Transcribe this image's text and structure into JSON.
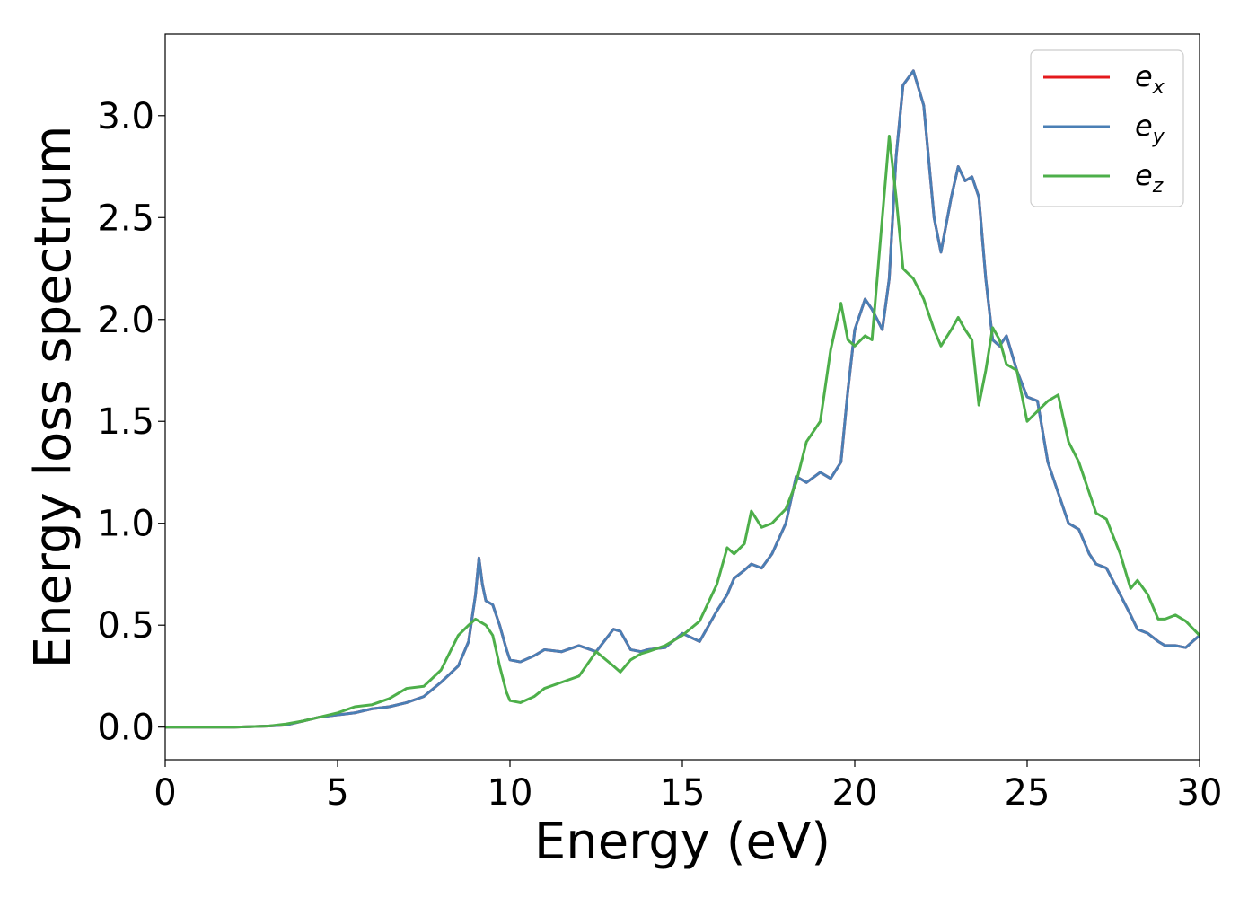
{
  "chart_data": {
    "type": "line",
    "title": "",
    "xlabel": "Energy (eV)",
    "ylabel": "Energy loss spectrum",
    "xlim": [
      0,
      30
    ],
    "ylim": [
      -0.16,
      3.4
    ],
    "xticks": [
      "0",
      "5",
      "10",
      "15",
      "20",
      "25",
      "30"
    ],
    "yticks": [
      "0.0",
      "0.5",
      "1.0",
      "1.5",
      "2.0",
      "2.5",
      "3.0"
    ],
    "grid": false,
    "legend_position": "top-right",
    "x": [
      0,
      1,
      2,
      3,
      3.5,
      4,
      4.5,
      5,
      5.5,
      6,
      6.5,
      7,
      7.5,
      8,
      8.5,
      8.8,
      9,
      9.1,
      9.2,
      9.3,
      9.5,
      9.7,
      9.9,
      10,
      10.3,
      10.7,
      11,
      11.5,
      12,
      12.5,
      13,
      13.2,
      13.5,
      13.8,
      14,
      14.5,
      15,
      15.5,
      16,
      16.3,
      16.5,
      16.8,
      17,
      17.3,
      17.6,
      18,
      18.3,
      18.6,
      19,
      19.3,
      19.6,
      19.8,
      20,
      20.3,
      20.5,
      20.8,
      21,
      21.2,
      21.4,
      21.7,
      22,
      22.3,
      22.5,
      22.8,
      23,
      23.2,
      23.4,
      23.6,
      23.8,
      24,
      24.2,
      24.4,
      24.7,
      25,
      25.3,
      25.6,
      25.9,
      26.2,
      26.5,
      26.8,
      27,
      27.3,
      27.7,
      28,
      28.2,
      28.5,
      28.8,
      29,
      29.3,
      29.6,
      30
    ],
    "series": [
      {
        "name": "e_x",
        "legend_base": "e",
        "legend_sub": "x",
        "color": "#e41a1c",
        "values": [
          0,
          0,
          0,
          0.005,
          0.01,
          0.03,
          0.05,
          0.06,
          0.07,
          0.09,
          0.1,
          0.12,
          0.15,
          0.22,
          0.3,
          0.42,
          0.65,
          0.83,
          0.7,
          0.62,
          0.6,
          0.5,
          0.38,
          0.33,
          0.32,
          0.35,
          0.38,
          0.37,
          0.4,
          0.37,
          0.48,
          0.47,
          0.38,
          0.37,
          0.38,
          0.39,
          0.46,
          0.42,
          0.57,
          0.65,
          0.73,
          0.77,
          0.8,
          0.78,
          0.85,
          1.0,
          1.23,
          1.2,
          1.25,
          1.22,
          1.3,
          1.65,
          1.95,
          2.1,
          2.05,
          1.95,
          2.2,
          2.8,
          3.15,
          3.22,
          3.05,
          2.5,
          2.33,
          2.6,
          2.75,
          2.68,
          2.7,
          2.6,
          2.2,
          1.9,
          1.87,
          1.92,
          1.75,
          1.62,
          1.6,
          1.3,
          1.15,
          1.0,
          0.97,
          0.85,
          0.8,
          0.78,
          0.65,
          0.55,
          0.48,
          0.46,
          0.42,
          0.4,
          0.4,
          0.39,
          0.45
        ]
      },
      {
        "name": "e_y",
        "legend_base": "e",
        "legend_sub": "y",
        "color": "#4a7fb5",
        "values": [
          0,
          0,
          0,
          0.005,
          0.01,
          0.03,
          0.05,
          0.06,
          0.07,
          0.09,
          0.1,
          0.12,
          0.15,
          0.22,
          0.3,
          0.42,
          0.65,
          0.83,
          0.7,
          0.62,
          0.6,
          0.5,
          0.38,
          0.33,
          0.32,
          0.35,
          0.38,
          0.37,
          0.4,
          0.37,
          0.48,
          0.47,
          0.38,
          0.37,
          0.38,
          0.39,
          0.46,
          0.42,
          0.57,
          0.65,
          0.73,
          0.77,
          0.8,
          0.78,
          0.85,
          1.0,
          1.23,
          1.2,
          1.25,
          1.22,
          1.3,
          1.65,
          1.95,
          2.1,
          2.05,
          1.95,
          2.2,
          2.8,
          3.15,
          3.22,
          3.05,
          2.5,
          2.33,
          2.6,
          2.75,
          2.68,
          2.7,
          2.6,
          2.2,
          1.9,
          1.87,
          1.92,
          1.75,
          1.62,
          1.6,
          1.3,
          1.15,
          1.0,
          0.97,
          0.85,
          0.8,
          0.78,
          0.65,
          0.55,
          0.48,
          0.46,
          0.42,
          0.4,
          0.4,
          0.39,
          0.45
        ]
      },
      {
        "name": "e_z",
        "legend_base": "e",
        "legend_sub": "z",
        "color": "#4daf4a",
        "values": [
          0,
          0,
          0,
          0.005,
          0.015,
          0.03,
          0.05,
          0.07,
          0.1,
          0.11,
          0.14,
          0.19,
          0.2,
          0.28,
          0.45,
          0.5,
          0.53,
          0.52,
          0.51,
          0.5,
          0.45,
          0.3,
          0.17,
          0.13,
          0.12,
          0.15,
          0.19,
          0.22,
          0.25,
          0.37,
          0.3,
          0.27,
          0.33,
          0.36,
          0.37,
          0.4,
          0.45,
          0.52,
          0.7,
          0.88,
          0.85,
          0.9,
          1.06,
          0.98,
          1.0,
          1.07,
          1.2,
          1.4,
          1.5,
          1.85,
          2.08,
          1.9,
          1.87,
          1.92,
          1.9,
          2.5,
          2.9,
          2.6,
          2.25,
          2.2,
          2.1,
          1.95,
          1.87,
          1.95,
          2.01,
          1.95,
          1.9,
          1.58,
          1.75,
          1.96,
          1.9,
          1.78,
          1.75,
          1.5,
          1.55,
          1.6,
          1.63,
          1.4,
          1.3,
          1.15,
          1.05,
          1.02,
          0.85,
          0.68,
          0.72,
          0.65,
          0.53,
          0.53,
          0.55,
          0.52,
          0.45
        ]
      }
    ],
    "colors": {
      "axes": "#000000",
      "background": "#ffffff",
      "legend_border": "#cccccc"
    }
  }
}
